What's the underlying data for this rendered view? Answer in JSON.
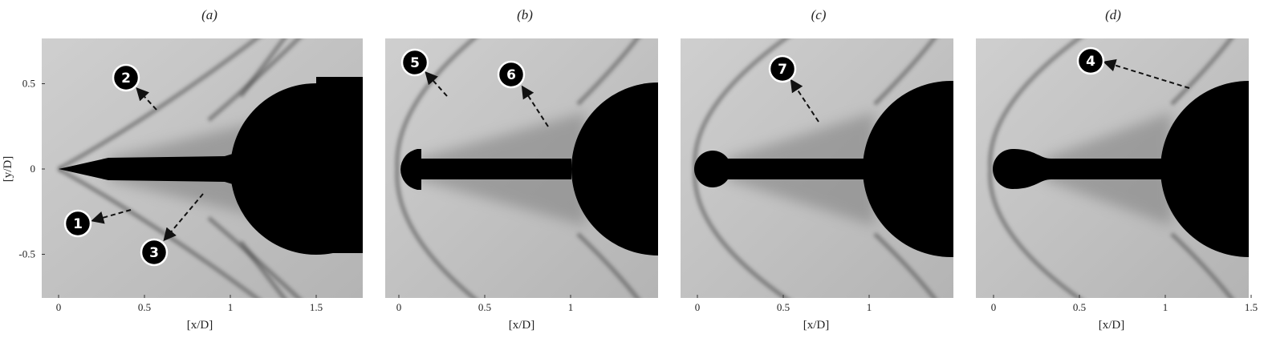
{
  "panels": [
    {
      "title": "(a)",
      "xlabel": "[x/D]",
      "ylabel": "[y/D]",
      "xticks": [
        0,
        0.5,
        1,
        1.5
      ],
      "yticks": [
        0.5,
        0,
        -0.5
      ],
      "markers": [
        "1",
        "2",
        "3"
      ]
    },
    {
      "title": "(b)",
      "xlabel": "[x/D]",
      "xticks": [
        0,
        0.5,
        1
      ],
      "markers": [
        "5",
        "6"
      ]
    },
    {
      "title": "(c)",
      "xlabel": "[x/D]",
      "xticks": [
        0,
        0.5,
        1
      ],
      "markers": [
        "7"
      ]
    },
    {
      "title": "(d)",
      "xlabel": "[x/D]",
      "xticks": [
        0,
        0.5,
        1,
        1.5
      ],
      "markers": [
        "4"
      ]
    }
  ]
}
